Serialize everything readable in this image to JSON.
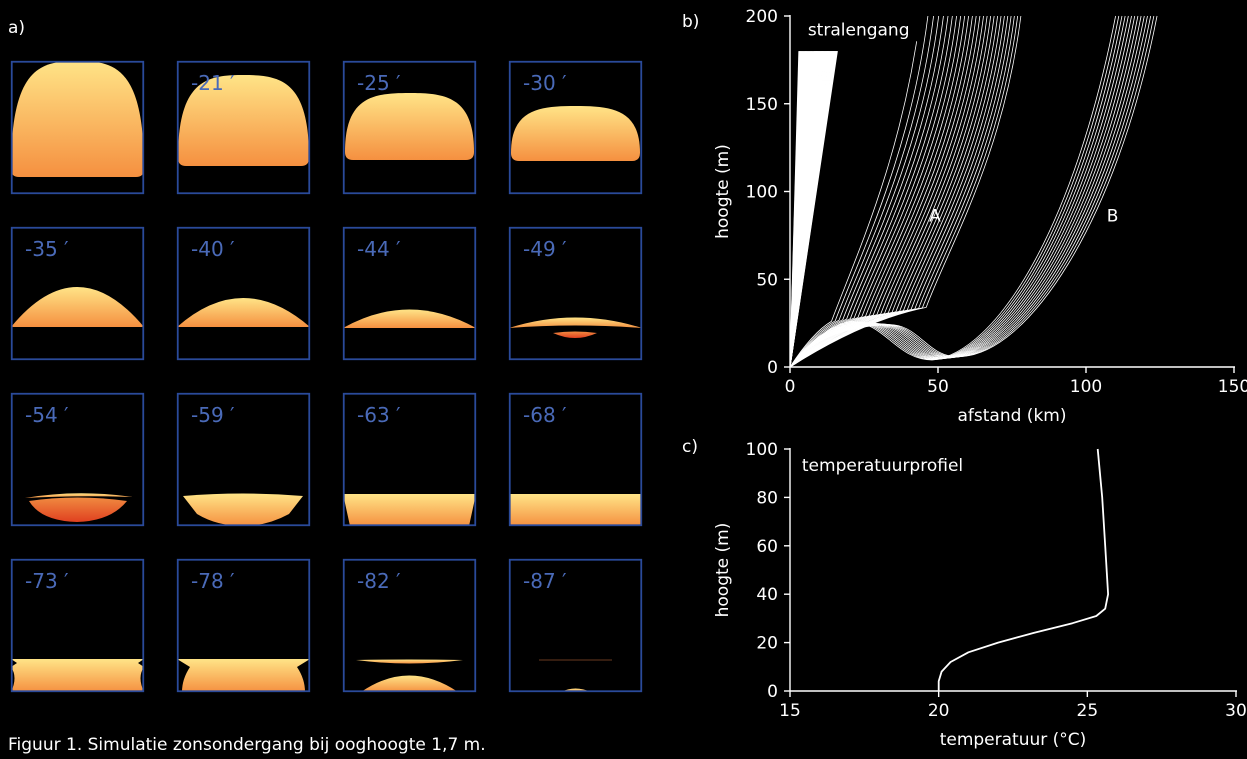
{
  "figure": {
    "panel_a_label": "a)",
    "panel_b_label": "b)",
    "panel_c_label": "c)",
    "caption": "Figuur 1. Simulatie zonsondergang bij ooghoogte 1,7 m."
  },
  "colors": {
    "background": "#000000",
    "frame": "#2a4a9a",
    "frame_label": "#4a6ab8",
    "sun_top": "#ffe487",
    "sun_bottom": "#f59040",
    "sun_red": "#e04020",
    "line": "#ffffff"
  },
  "chart_data": [
    {
      "type": "image-grid",
      "panel": "a",
      "frames": [
        {
          "label": ""
        },
        {
          "label": "-21 ′"
        },
        {
          "label": "-25 ′"
        },
        {
          "label": "-30 ′"
        },
        {
          "label": "-35 ′"
        },
        {
          "label": "-40 ′"
        },
        {
          "label": "-44 ′"
        },
        {
          "label": "-49 ′"
        },
        {
          "label": "-54 ′"
        },
        {
          "label": "-59 ′"
        },
        {
          "label": "-63 ′"
        },
        {
          "label": "-68 ′"
        },
        {
          "label": "-73 ′"
        },
        {
          "label": "-78 ′"
        },
        {
          "label": "-82 ′"
        },
        {
          "label": "-87 ′"
        }
      ]
    },
    {
      "type": "line",
      "panel": "b",
      "title": "stralengang",
      "xlabel": "afstand (km)",
      "ylabel": "hoogte (m)",
      "xlim": [
        0,
        150
      ],
      "ylim": [
        0,
        200
      ],
      "xticks": [
        0,
        50,
        100,
        150
      ],
      "yticks": [
        0,
        50,
        100,
        150,
        200
      ],
      "annotations": [
        {
          "text": "A",
          "x": 47,
          "y": 83
        },
        {
          "text": "B",
          "x": 107,
          "y": 83
        }
      ]
    },
    {
      "type": "line",
      "panel": "c",
      "title": "temperatuurprofiel",
      "xlabel": "temperatuur (°C)",
      "ylabel": "hoogte (m)",
      "xlim": [
        15,
        30
      ],
      "ylim": [
        0,
        100
      ],
      "xticks": [
        15,
        20,
        25,
        30
      ],
      "yticks": [
        0,
        20,
        40,
        60,
        80,
        100
      ],
      "series": [
        {
          "x": [
            20,
            20,
            20.1,
            20.4,
            21,
            22,
            23.2,
            24.5,
            25.3,
            25.6,
            25.7,
            25.6,
            25.5,
            25.35
          ],
          "y": [
            0,
            4,
            8,
            12,
            16,
            20,
            24,
            28,
            31,
            34,
            40,
            60,
            80,
            100
          ]
        }
      ]
    }
  ]
}
